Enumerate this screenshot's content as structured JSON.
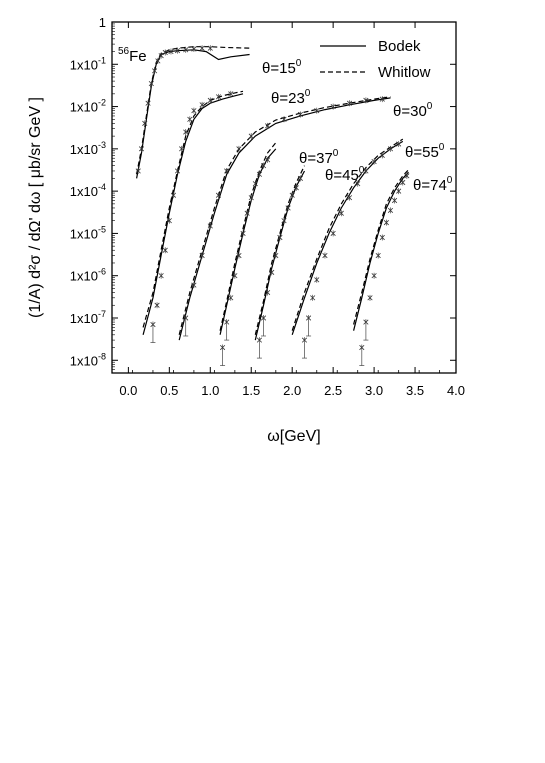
{
  "chart_data": {
    "type": "scatter",
    "title": "",
    "xlabel": "ω[GeV]",
    "ylabel": "(1/A) d²σ / dΩ' dω [ μb/sr GeV ]",
    "xlim": [
      -0.2,
      4.0
    ],
    "ylim": [
      5e-09,
      1
    ],
    "yscale": "log",
    "grid": false,
    "legend_position": "top-right",
    "nucleus_label": {
      "mass_number": "56",
      "element": "Fe"
    },
    "legend": [
      {
        "name": "Bodek",
        "style": "solid"
      },
      {
        "name": "Whitlow",
        "style": "dashed"
      }
    ],
    "x_ticks": [
      "0.0",
      "0.5",
      "1.0",
      "1.5",
      "2.0",
      "2.5",
      "3.0",
      "3.5",
      "4.0"
    ],
    "x_tick_values": [
      0.0,
      0.5,
      1.0,
      1.5,
      2.0,
      2.5,
      3.0,
      3.5,
      4.0
    ],
    "y_ticks": [
      {
        "text": "1",
        "value": 1
      },
      {
        "text": "1x10-1",
        "base": "1x10",
        "exp": "-1",
        "value": 0.1
      },
      {
        "text": "1x10-2",
        "base": "1x10",
        "exp": "-2",
        "value": 0.01
      },
      {
        "text": "1x10-3",
        "base": "1x10",
        "exp": "-3",
        "value": 0.001
      },
      {
        "text": "1x10-4",
        "base": "1x10",
        "exp": "-4",
        "value": 0.0001
      },
      {
        "text": "1x10-5",
        "base": "1x10",
        "exp": "-5",
        "value": 1e-05
      },
      {
        "text": "1x10-6",
        "base": "1x10",
        "exp": "-6",
        "value": 1e-06
      },
      {
        "text": "1x10-7",
        "base": "1x10",
        "exp": "-7",
        "value": 1e-07
      },
      {
        "text": "1x10-8",
        "base": "1x10",
        "exp": "-8",
        "value": 1e-08
      }
    ],
    "series": [
      {
        "angle_label": "θ=15",
        "angle_sup": "0",
        "data_points": [
          [
            0.12,
            0.0003
          ],
          [
            0.16,
            0.001
          ],
          [
            0.2,
            0.004
          ],
          [
            0.24,
            0.012
          ],
          [
            0.28,
            0.035
          ],
          [
            0.32,
            0.07
          ],
          [
            0.36,
            0.12
          ],
          [
            0.4,
            0.16
          ],
          [
            0.45,
            0.19
          ],
          [
            0.52,
            0.2
          ],
          [
            0.6,
            0.21
          ],
          [
            0.7,
            0.22
          ],
          [
            0.8,
            0.23
          ],
          [
            0.9,
            0.24
          ],
          [
            1.0,
            0.24
          ]
        ],
        "bodek": [
          [
            0.1,
            0.0002
          ],
          [
            0.16,
            0.0008
          ],
          [
            0.22,
            0.005
          ],
          [
            0.28,
            0.03
          ],
          [
            0.34,
            0.1
          ],
          [
            0.4,
            0.17
          ],
          [
            0.5,
            0.2
          ],
          [
            0.6,
            0.21
          ],
          [
            0.8,
            0.22
          ],
          [
            0.95,
            0.2
          ],
          [
            1.1,
            0.13
          ],
          [
            1.25,
            0.15
          ],
          [
            1.48,
            0.17
          ]
        ],
        "whitlow": [
          [
            0.1,
            0.00025
          ],
          [
            0.16,
            0.001
          ],
          [
            0.22,
            0.006
          ],
          [
            0.28,
            0.035
          ],
          [
            0.34,
            0.11
          ],
          [
            0.4,
            0.18
          ],
          [
            0.5,
            0.22
          ],
          [
            0.6,
            0.24
          ],
          [
            0.8,
            0.26
          ],
          [
            1.0,
            0.26
          ],
          [
            1.2,
            0.25
          ],
          [
            1.5,
            0.24
          ]
        ]
      },
      {
        "angle_label": "θ=23",
        "angle_sup": "0",
        "data_points": [
          [
            0.3,
            7e-08
          ],
          [
            0.35,
            2e-07
          ],
          [
            0.4,
            1e-06
          ],
          [
            0.45,
            4e-06
          ],
          [
            0.5,
            2e-05
          ],
          [
            0.55,
            8e-05
          ],
          [
            0.6,
            0.0003
          ],
          [
            0.65,
            0.001
          ],
          [
            0.7,
            0.0025
          ],
          [
            0.75,
            0.005
          ],
          [
            0.8,
            0.008
          ],
          [
            0.9,
            0.011
          ],
          [
            1.0,
            0.014
          ],
          [
            1.1,
            0.017
          ],
          [
            1.25,
            0.02
          ]
        ],
        "bodek": [
          [
            0.18,
            4e-08
          ],
          [
            0.3,
            3e-07
          ],
          [
            0.4,
            3e-06
          ],
          [
            0.5,
            3e-05
          ],
          [
            0.6,
            0.00025
          ],
          [
            0.7,
            0.0015
          ],
          [
            0.8,
            0.005
          ],
          [
            0.9,
            0.009
          ],
          [
            1.0,
            0.012
          ],
          [
            1.15,
            0.015
          ],
          [
            1.3,
            0.018
          ],
          [
            1.4,
            0.02
          ]
        ],
        "whitlow": [
          [
            0.18,
            6e-08
          ],
          [
            0.3,
            4e-07
          ],
          [
            0.4,
            4e-06
          ],
          [
            0.5,
            4e-05
          ],
          [
            0.6,
            0.0003
          ],
          [
            0.7,
            0.002
          ],
          [
            0.8,
            0.006
          ],
          [
            0.9,
            0.01
          ],
          [
            1.0,
            0.014
          ],
          [
            1.15,
            0.018
          ],
          [
            1.3,
            0.021
          ],
          [
            1.4,
            0.023
          ]
        ]
      },
      {
        "angle_label": "θ=30",
        "angle_sup": "0",
        "data_points": [
          [
            0.7,
            1e-07
          ],
          [
            0.8,
            6e-07
          ],
          [
            0.9,
            3e-06
          ],
          [
            1.0,
            1.5e-05
          ],
          [
            1.1,
            8e-05
          ],
          [
            1.2,
            0.0003
          ],
          [
            1.35,
            0.001
          ],
          [
            1.5,
            0.002
          ],
          [
            1.7,
            0.0035
          ],
          [
            1.9,
            0.005
          ],
          [
            2.1,
            0.0065
          ],
          [
            2.3,
            0.008
          ],
          [
            2.5,
            0.01
          ],
          [
            2.7,
            0.012
          ],
          [
            2.9,
            0.014
          ],
          [
            3.1,
            0.015
          ]
        ],
        "bodek": [
          [
            0.62,
            3e-08
          ],
          [
            0.75,
            3e-07
          ],
          [
            0.9,
            3e-06
          ],
          [
            1.05,
            3e-05
          ],
          [
            1.2,
            0.00025
          ],
          [
            1.35,
            0.0008
          ],
          [
            1.55,
            0.002
          ],
          [
            1.8,
            0.004
          ],
          [
            2.1,
            0.006
          ],
          [
            2.4,
            0.0085
          ],
          [
            2.7,
            0.011
          ],
          [
            3.0,
            0.014
          ],
          [
            3.2,
            0.016
          ]
        ],
        "whitlow": [
          [
            0.62,
            4e-08
          ],
          [
            0.75,
            4e-07
          ],
          [
            0.9,
            4e-06
          ],
          [
            1.05,
            4e-05
          ],
          [
            1.2,
            0.00032
          ],
          [
            1.35,
            0.001
          ],
          [
            1.55,
            0.0025
          ],
          [
            1.8,
            0.0048
          ],
          [
            2.1,
            0.007
          ],
          [
            2.4,
            0.0095
          ],
          [
            2.7,
            0.012
          ],
          [
            3.0,
            0.015
          ],
          [
            3.2,
            0.017
          ]
        ]
      },
      {
        "angle_label": "θ=37",
        "angle_sup": "0",
        "data_points": [
          [
            1.15,
            2e-08
          ],
          [
            1.2,
            8e-08
          ],
          [
            1.25,
            3e-07
          ],
          [
            1.3,
            1e-06
          ],
          [
            1.35,
            3e-06
          ],
          [
            1.4,
            1e-05
          ],
          [
            1.45,
            3e-05
          ],
          [
            1.5,
            7e-05
          ],
          [
            1.55,
            0.00015
          ],
          [
            1.6,
            0.00025
          ],
          [
            1.65,
            0.0004
          ],
          [
            1.7,
            0.00055
          ]
        ],
        "bodek": [
          [
            1.12,
            4e-08
          ],
          [
            1.2,
            2e-07
          ],
          [
            1.3,
            1.5e-06
          ],
          [
            1.4,
            1e-05
          ],
          [
            1.5,
            6e-05
          ],
          [
            1.6,
            0.00025
          ],
          [
            1.7,
            0.0006
          ],
          [
            1.8,
            0.001
          ]
        ],
        "whitlow": [
          [
            1.12,
            5e-08
          ],
          [
            1.2,
            2.5e-07
          ],
          [
            1.3,
            2e-06
          ],
          [
            1.4,
            1.3e-05
          ],
          [
            1.5,
            8e-05
          ],
          [
            1.6,
            0.0003
          ],
          [
            1.7,
            0.0008
          ],
          [
            1.8,
            0.0014
          ]
        ]
      },
      {
        "angle_label": "θ=45",
        "angle_sup": "0",
        "data_points": [
          [
            1.6,
            3e-08
          ],
          [
            1.65,
            1e-07
          ],
          [
            1.7,
            4e-07
          ],
          [
            1.75,
            1.2e-06
          ],
          [
            1.8,
            3e-06
          ],
          [
            1.85,
            8e-06
          ],
          [
            1.9,
            2e-05
          ],
          [
            1.95,
            4e-05
          ],
          [
            2.0,
            8e-05
          ],
          [
            2.05,
            0.00012
          ],
          [
            2.1,
            0.0002
          ]
        ],
        "bodek": [
          [
            1.55,
            3e-08
          ],
          [
            1.65,
            2e-07
          ],
          [
            1.75,
            1.5e-06
          ],
          [
            1.85,
            8e-06
          ],
          [
            1.95,
            4e-05
          ],
          [
            2.05,
            0.00013
          ],
          [
            2.15,
            0.0003
          ]
        ],
        "whitlow": [
          [
            1.55,
            4e-08
          ],
          [
            1.65,
            2.5e-07
          ],
          [
            1.75,
            2e-06
          ],
          [
            1.85,
            1e-05
          ],
          [
            1.95,
            5e-05
          ],
          [
            2.05,
            0.00016
          ],
          [
            2.15,
            0.0004
          ]
        ]
      },
      {
        "angle_label": "θ=55",
        "angle_sup": "0",
        "data_points": [
          [
            2.15,
            3e-08
          ],
          [
            2.2,
            1e-07
          ],
          [
            2.25,
            3e-07
          ],
          [
            2.3,
            8e-07
          ],
          [
            2.4,
            3e-06
          ],
          [
            2.5,
            1e-05
          ],
          [
            2.6,
            3e-05
          ],
          [
            2.7,
            7e-05
          ],
          [
            2.8,
            0.00015
          ],
          [
            2.9,
            0.0003
          ],
          [
            3.0,
            0.0005
          ],
          [
            3.1,
            0.0007
          ],
          [
            3.2,
            0.001
          ],
          [
            3.3,
            0.0013
          ]
        ],
        "bodek": [
          [
            2.0,
            4e-08
          ],
          [
            2.15,
            3e-07
          ],
          [
            2.3,
            2e-06
          ],
          [
            2.45,
            1e-05
          ],
          [
            2.6,
            4e-05
          ],
          [
            2.75,
            0.00012
          ],
          [
            2.9,
            0.0003
          ],
          [
            3.05,
            0.0006
          ],
          [
            3.2,
            0.001
          ],
          [
            3.35,
            0.0015
          ]
        ],
        "whitlow": [
          [
            2.0,
            5e-08
          ],
          [
            2.15,
            4e-07
          ],
          [
            2.3,
            2.5e-06
          ],
          [
            2.45,
            1.3e-05
          ],
          [
            2.6,
            5e-05
          ],
          [
            2.75,
            0.00015
          ],
          [
            2.9,
            0.00036
          ],
          [
            3.05,
            0.0007
          ],
          [
            3.2,
            0.0011
          ],
          [
            3.35,
            0.0017
          ]
        ]
      },
      {
        "angle_label": "θ=74",
        "angle_sup": "0",
        "data_points": [
          [
            2.85,
            2e-08
          ],
          [
            2.9,
            8e-08
          ],
          [
            2.95,
            3e-07
          ],
          [
            3.0,
            1e-06
          ],
          [
            3.05,
            3e-06
          ],
          [
            3.1,
            8e-06
          ],
          [
            3.15,
            1.8e-05
          ],
          [
            3.2,
            3.5e-05
          ],
          [
            3.25,
            6e-05
          ],
          [
            3.3,
            0.0001
          ],
          [
            3.35,
            0.00016
          ],
          [
            3.4,
            0.00023
          ]
        ],
        "bodek": [
          [
            2.75,
            5e-08
          ],
          [
            2.85,
            3e-07
          ],
          [
            2.95,
            2e-06
          ],
          [
            3.05,
            1e-05
          ],
          [
            3.15,
            4e-05
          ],
          [
            3.25,
            0.0001
          ],
          [
            3.35,
            0.0002
          ],
          [
            3.42,
            0.00028
          ]
        ],
        "whitlow": [
          [
            2.75,
            7e-08
          ],
          [
            2.85,
            4e-07
          ],
          [
            2.95,
            2.5e-06
          ],
          [
            3.05,
            1.2e-05
          ],
          [
            3.15,
            5e-05
          ],
          [
            3.25,
            0.00012
          ],
          [
            3.35,
            0.00023
          ],
          [
            3.42,
            0.00032
          ]
        ]
      }
    ]
  }
}
